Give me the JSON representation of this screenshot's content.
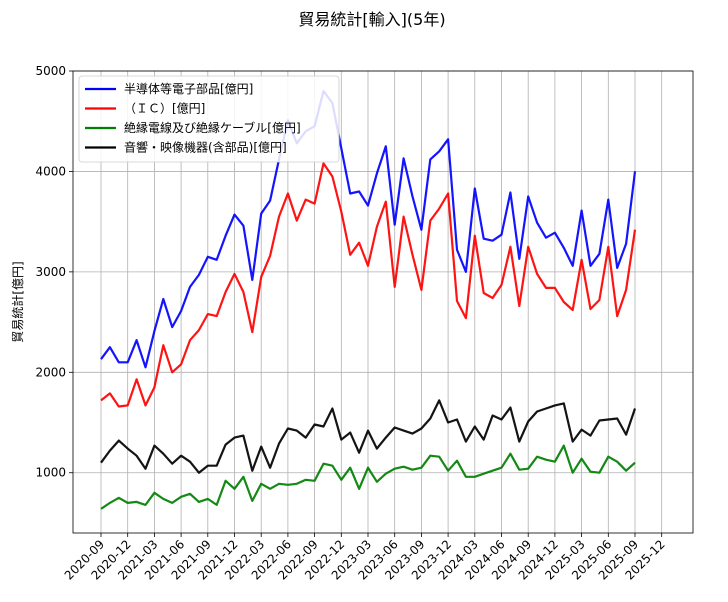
{
  "chart_data": {
    "type": "line",
    "title": "貿易統計[輸入](5年)",
    "xlabel": "",
    "ylabel": "貿易統計[億円]",
    "ylim": [
      400,
      5000
    ],
    "yticks": [
      1000,
      2000,
      3000,
      4000,
      5000
    ],
    "grid": true,
    "legend_position": "top-left",
    "x": [
      "2020-09",
      "2020-10",
      "2020-11",
      "2020-12",
      "2021-01",
      "2021-02",
      "2021-03",
      "2021-04",
      "2021-05",
      "2021-06",
      "2021-07",
      "2021-08",
      "2021-09",
      "2021-10",
      "2021-11",
      "2021-12",
      "2022-01",
      "2022-02",
      "2022-03",
      "2022-04",
      "2022-05",
      "2022-06",
      "2022-07",
      "2022-08",
      "2022-09",
      "2022-10",
      "2022-11",
      "2022-12",
      "2023-01",
      "2023-02",
      "2023-03",
      "2023-04",
      "2023-05",
      "2023-06",
      "2023-07",
      "2023-08",
      "2023-09",
      "2023-10",
      "2023-11",
      "2023-12",
      "2024-01",
      "2024-02",
      "2024-03",
      "2024-04",
      "2024-05",
      "2024-06",
      "2024-07",
      "2024-08",
      "2024-09",
      "2024-10",
      "2024-11",
      "2024-12",
      "2025-01",
      "2025-02",
      "2025-03",
      "2025-04",
      "2025-05",
      "2025-06",
      "2025-07",
      "2025-08"
    ],
    "xticks": [
      "2020-09",
      "2020-12",
      "2021-03",
      "2021-06",
      "2021-09",
      "2021-12",
      "2022-03",
      "2022-06",
      "2022-09",
      "2022-12",
      "2023-03",
      "2023-06",
      "2023-09",
      "2023-12",
      "2024-03",
      "2024-06",
      "2024-09",
      "2024-12",
      "2025-03",
      "2025-06",
      "2025-09",
      "2025-12"
    ],
    "series": [
      {
        "name": "半導体等電子部品[億円]",
        "color": "#0000ff",
        "values": [
          2130,
          2250,
          2100,
          2100,
          2320,
          2050,
          2410,
          2730,
          2450,
          2610,
          2850,
          2970,
          3150,
          3120,
          3360,
          3570,
          3460,
          2920,
          3580,
          3710,
          4120,
          4510,
          4280,
          4400,
          4450,
          4800,
          4680,
          4230,
          3780,
          3800,
          3660,
          3980,
          4250,
          3470,
          4130,
          3750,
          3420,
          4120,
          4200,
          4320,
          3220,
          3000,
          3830,
          3330,
          3310,
          3370,
          3790,
          3130,
          3750,
          3490,
          3340,
          3390,
          3240,
          3060,
          3610,
          3060,
          3180,
          3720,
          3040,
          3280
        ],
        "last": 4000
      },
      {
        "name": "（ＩＣ）[億円]",
        "color": "#ff0000",
        "values": [
          1720,
          1790,
          1660,
          1670,
          1930,
          1670,
          1850,
          2270,
          2000,
          2080,
          2320,
          2420,
          2580,
          2560,
          2800,
          2980,
          2800,
          2400,
          2950,
          3160,
          3550,
          3780,
          3510,
          3720,
          3680,
          4080,
          3950,
          3600,
          3170,
          3290,
          3060,
          3450,
          3700,
          2850,
          3550,
          3170,
          2820,
          3510,
          3630,
          3780,
          2710,
          2540,
          3360,
          2790,
          2740,
          2870,
          3250,
          2660,
          3250,
          2980,
          2840,
          2840,
          2700,
          2620,
          3120,
          2630,
          2720,
          3250,
          2560,
          2820
        ],
        "last": 3420
      },
      {
        "name": "絶縁電線及び絶縁ケーブル[億円]",
        "color": "#008000",
        "values": [
          640,
          700,
          750,
          700,
          710,
          680,
          800,
          740,
          700,
          760,
          790,
          710,
          740,
          680,
          920,
          840,
          960,
          720,
          890,
          840,
          890,
          880,
          890,
          930,
          920,
          1090,
          1070,
          930,
          1050,
          840,
          1050,
          910,
          990,
          1040,
          1060,
          1030,
          1050,
          1170,
          1160,
          1020,
          1120,
          960,
          960,
          990,
          1020,
          1050,
          1190,
          1030,
          1040,
          1160,
          1130,
          1110,
          1270,
          1000,
          1140,
          1010,
          1000,
          1160,
          1110,
          1020
        ],
        "last": 1100
      },
      {
        "name": "音響・映像機器(含部品)[億円]",
        "color": "#000000",
        "values": [
          1100,
          1220,
          1320,
          1240,
          1170,
          1040,
          1270,
          1190,
          1090,
          1170,
          1110,
          1000,
          1070,
          1070,
          1280,
          1350,
          1370,
          1020,
          1260,
          1050,
          1290,
          1440,
          1420,
          1350,
          1480,
          1460,
          1640,
          1330,
          1400,
          1200,
          1420,
          1240,
          1350,
          1450,
          1420,
          1390,
          1440,
          1540,
          1720,
          1500,
          1530,
          1310,
          1460,
          1330,
          1570,
          1530,
          1650,
          1310,
          1510,
          1610,
          1640,
          1670,
          1690,
          1310,
          1430,
          1370,
          1520,
          1530,
          1540,
          1380
        ],
        "last": 1640
      }
    ]
  }
}
